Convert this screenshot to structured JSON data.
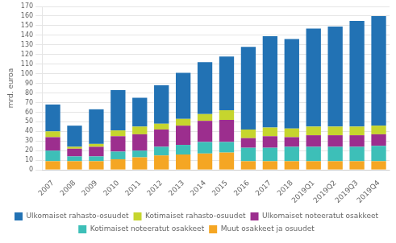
{
  "chart_data": {
    "type": "bar",
    "stacked": true,
    "ylabel": "mrd. euroa",
    "categories": [
      "2007",
      "2008",
      "2009",
      "2010",
      "2011",
      "2012",
      "2013",
      "2014",
      "2015",
      "2016",
      "2017",
      "2018",
      "2019Q1",
      "2019Q2",
      "2019Q3",
      "2019Q4"
    ],
    "series": [
      {
        "name": "Muut osakkeet ja osuudet",
        "color": "#F5A623",
        "values": [
          9,
          9,
          9,
          11,
          13,
          15,
          16,
          17,
          18,
          9,
          9,
          9,
          9,
          9,
          9,
          9
        ]
      },
      {
        "name": "Kotimaiset noteeratut osakkeet",
        "color": "#3DBFB8",
        "values": [
          11,
          5,
          5,
          8,
          7,
          9,
          10,
          12,
          11,
          14,
          14,
          15,
          15,
          15,
          15,
          16
        ]
      },
      {
        "name": "Ulkomaiset noteeratut osakkeet",
        "color": "#9C2E8E",
        "values": [
          14,
          8,
          10,
          16,
          17,
          18,
          20,
          22,
          23,
          10,
          12,
          10,
          12,
          12,
          12,
          12
        ]
      },
      {
        "name": "Kotimaiset rahasto-osuudet",
        "color": "#C6D52E",
        "values": [
          6,
          2,
          3,
          6,
          8,
          6,
          7,
          7,
          10,
          9,
          9,
          9,
          9,
          9,
          9,
          9
        ]
      },
      {
        "name": "Ulkomaiset rahasto-osuudet",
        "color": "#2272B4",
        "values": [
          28,
          22,
          36,
          42,
          30,
          40,
          48,
          54,
          56,
          86,
          95,
          93,
          102,
          104,
          110,
          114
        ]
      }
    ],
    "ylim": [
      0,
      170
    ],
    "yticks": [
      0,
      10,
      20,
      30,
      40,
      50,
      60,
      70,
      80,
      90,
      100,
      110,
      120,
      130,
      140,
      150,
      160,
      170
    ],
    "grid": true,
    "legend": "bottom"
  }
}
